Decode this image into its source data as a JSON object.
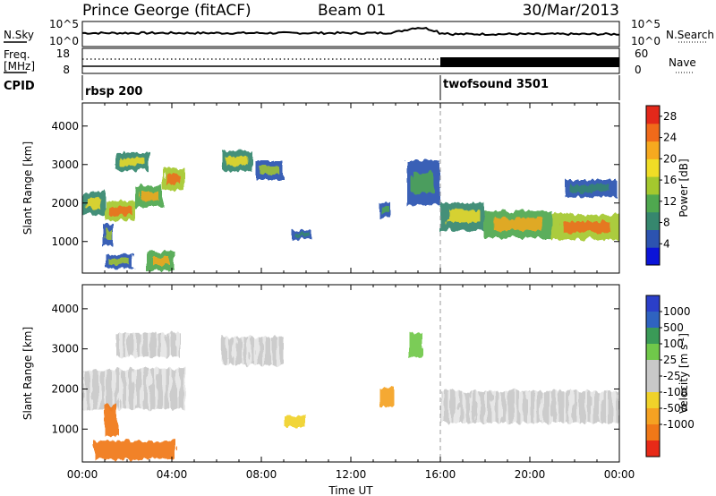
{
  "header": {
    "station": "Prince George (fitACF)",
    "beam": "Beam 01",
    "date": "30/Mar/2013"
  },
  "noise_panel": {
    "left_label": "N.Sky",
    "right_label": "N.Search",
    "left_ticks": [
      "10^5",
      "10^0"
    ],
    "right_ticks": [
      "10^5",
      "10^0"
    ]
  },
  "freq_panel": {
    "left_label_1": "Freq.",
    "left_label_2": "[MHz]",
    "right_label": "Nave",
    "left_ticks": [
      "18",
      "8"
    ],
    "right_ticks": [
      "60",
      "0"
    ]
  },
  "cpid": {
    "label": "CPID",
    "modes": [
      {
        "name": "rbsp 200",
        "start_hour": 0
      },
      {
        "name": "twofsound 3501",
        "start_hour": 16
      }
    ]
  },
  "chart_data": [
    {
      "type": "heatmap",
      "name": "power",
      "ylabel": "Slant Range [km]",
      "xlabel": "",
      "ylim": [
        180,
        4600
      ],
      "yticks": [
        "1000",
        "2000",
        "3000",
        "4000"
      ],
      "xlim": [
        0,
        24
      ],
      "colorbar": {
        "label": "Power [dB]",
        "ticks": [
          "4",
          "8",
          "12",
          "16",
          "20",
          "24",
          "28"
        ],
        "range": [
          0,
          30
        ],
        "colors": [
          "#0b14d8",
          "#2c53b0",
          "#36876e",
          "#4fa84f",
          "#a4c82e",
          "#f0dd26",
          "#f6a91f",
          "#f06a1a",
          "#e3281a"
        ]
      },
      "regions": [
        {
          "t": [
            0.0,
            1.0
          ],
          "r": [
            1700,
            2300
          ],
          "power": 18
        },
        {
          "t": [
            1.0,
            2.4
          ],
          "r": [
            1550,
            2050
          ],
          "power": 25
        },
        {
          "t": [
            2.4,
            3.6
          ],
          "r": [
            1900,
            2450
          ],
          "power": 20
        },
        {
          "t": [
            3.6,
            4.6
          ],
          "r": [
            2350,
            2900
          ],
          "power": 26
        },
        {
          "t": [
            1.5,
            3.0
          ],
          "r": [
            2850,
            3300
          ],
          "power": 17
        },
        {
          "t": [
            0.9,
            1.4
          ],
          "r": [
            900,
            1450
          ],
          "power": 14
        },
        {
          "t": [
            1.0,
            2.3
          ],
          "r": [
            300,
            650
          ],
          "power": 15
        },
        {
          "t": [
            2.9,
            4.1
          ],
          "r": [
            250,
            750
          ],
          "power": 22
        },
        {
          "t": [
            6.2,
            7.6
          ],
          "r": [
            2850,
            3350
          ],
          "power": 19
        },
        {
          "t": [
            7.7,
            9.0
          ],
          "r": [
            2600,
            3100
          ],
          "power": 14
        },
        {
          "t": [
            9.4,
            10.3
          ],
          "r": [
            1050,
            1300
          ],
          "power": 8
        },
        {
          "t": [
            13.3,
            13.8
          ],
          "r": [
            1600,
            2000
          ],
          "power": 12
        },
        {
          "t": [
            14.5,
            16.0
          ],
          "r": [
            1950,
            3100
          ],
          "power": 10
        },
        {
          "t": [
            16.0,
            18.0
          ],
          "r": [
            1300,
            2000
          ],
          "power": 18
        },
        {
          "t": [
            18.0,
            21.0
          ],
          "r": [
            1100,
            1800
          ],
          "power": 20
        },
        {
          "t": [
            21.0,
            24.0
          ],
          "r": [
            1050,
            1700
          ],
          "power": 24
        },
        {
          "t": [
            21.5,
            24.0
          ],
          "r": [
            2150,
            2600
          ],
          "power": 8
        }
      ]
    },
    {
      "type": "heatmap",
      "name": "velocity",
      "ylabel": "Slant Range [km]",
      "xlabel": "Time UT",
      "ylim": [
        180,
        4600
      ],
      "yticks": [
        "1000",
        "2000",
        "3000",
        "4000"
      ],
      "xlim": [
        0,
        24
      ],
      "xticks": [
        "00:00",
        "04:00",
        "08:00",
        "12:00",
        "16:00",
        "20:00",
        "00:00"
      ],
      "colorbar": {
        "label": "Velocity [m s^-1]",
        "ticks": [
          "1000",
          "500",
          "100",
          "25",
          "-25",
          "-100",
          "-500",
          "-1000"
        ],
        "colors": [
          "#2b3fc9",
          "#2f63c0",
          "#3a9a57",
          "#70c84a",
          "#c8c8c8",
          "#c8c8c8",
          "#f0d22a",
          "#f5a222",
          "#f07818",
          "#e82a18"
        ]
      },
      "regions": [
        {
          "t": [
            0.0,
            4.6
          ],
          "r": [
            1500,
            2500
          ],
          "velocity": 0
        },
        {
          "t": [
            1.5,
            4.4
          ],
          "r": [
            2800,
            3400
          ],
          "velocity": 0
        },
        {
          "t": [
            6.2,
            9.0
          ],
          "r": [
            2600,
            3300
          ],
          "velocity": 0
        },
        {
          "t": [
            1.0,
            1.6
          ],
          "r": [
            800,
            1600
          ],
          "velocity": -700
        },
        {
          "t": [
            0.5,
            4.2
          ],
          "r": [
            250,
            700
          ],
          "velocity": -400
        },
        {
          "t": [
            9.0,
            10.0
          ],
          "r": [
            1050,
            1350
          ],
          "velocity": -60
        },
        {
          "t": [
            13.3,
            13.9
          ],
          "r": [
            1550,
            2050
          ],
          "velocity": -150
        },
        {
          "t": [
            14.6,
            15.2
          ],
          "r": [
            2800,
            3400
          ],
          "velocity": 60
        },
        {
          "t": [
            16.0,
            24.0
          ],
          "r": [
            1150,
            1950
          ],
          "velocity": 0
        }
      ]
    }
  ]
}
